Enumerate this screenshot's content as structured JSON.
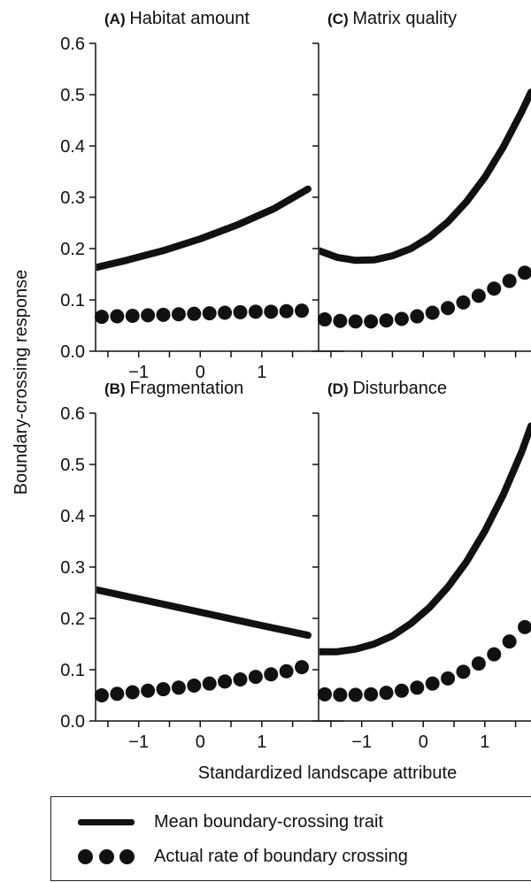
{
  "figure": {
    "ylabel": "Boundary-crossing response",
    "xlabel": "Standardized landscape attribute",
    "legend": {
      "line_label": "Mean boundary-crossing trait",
      "dots_label": "Actual rate of boundary crossing"
    },
    "colors": {
      "ink": "#111111",
      "background": "#ffffff"
    }
  },
  "chart_data": [
    {
      "type": "line",
      "panel_letter": "(A)",
      "title": "Habitat amount",
      "xlim": [
        -1.7,
        1.75
      ],
      "ylim": [
        0,
        0.6
      ],
      "yticks": [
        "0.0",
        "0.1",
        "0.2",
        "0.3",
        "0.4",
        "0.5",
        "0.6"
      ],
      "xticks": [
        "−1",
        "0",
        "1"
      ],
      "series": [
        {
          "name": "Mean boundary-crossing trait",
          "style": "line",
          "x": [
            -1.7,
            -1.2,
            -0.6,
            0,
            0.6,
            1.2,
            1.75
          ],
          "y": [
            0.163,
            0.177,
            0.196,
            0.219,
            0.246,
            0.278,
            0.316
          ]
        },
        {
          "name": "Actual rate of boundary crossing",
          "style": "dots",
          "x": [
            -1.6,
            -1.35,
            -1.1,
            -0.85,
            -0.6,
            -0.35,
            -0.1,
            0.15,
            0.4,
            0.65,
            0.9,
            1.15,
            1.4,
            1.65
          ],
          "y": [
            0.067,
            0.068,
            0.069,
            0.07,
            0.071,
            0.072,
            0.073,
            0.074,
            0.075,
            0.076,
            0.077,
            0.077,
            0.078,
            0.079
          ]
        }
      ]
    },
    {
      "type": "line",
      "panel_letter": "(C)",
      "title": "Matrix quality",
      "xlim": [
        -1.7,
        1.75
      ],
      "ylim": [
        0,
        0.6
      ],
      "yticks": [],
      "xticks": [],
      "series": [
        {
          "name": "Mean boundary-crossing trait",
          "style": "line",
          "x": [
            -1.7,
            -1.4,
            -1.1,
            -0.8,
            -0.5,
            -0.2,
            0.1,
            0.4,
            0.7,
            1.0,
            1.3,
            1.6,
            1.75
          ],
          "y": [
            0.196,
            0.183,
            0.177,
            0.178,
            0.186,
            0.2,
            0.222,
            0.252,
            0.291,
            0.339,
            0.398,
            0.467,
            0.505
          ]
        },
        {
          "name": "Actual rate of boundary crossing",
          "style": "dots",
          "x": [
            -1.6,
            -1.35,
            -1.1,
            -0.85,
            -0.6,
            -0.35,
            -0.1,
            0.15,
            0.4,
            0.65,
            0.9,
            1.15,
            1.4,
            1.65
          ],
          "y": [
            0.062,
            0.059,
            0.058,
            0.058,
            0.06,
            0.063,
            0.068,
            0.075,
            0.084,
            0.095,
            0.108,
            0.122,
            0.137,
            0.153
          ]
        }
      ]
    },
    {
      "type": "line",
      "panel_letter": "(B)",
      "title": "Fragmentation",
      "xlim": [
        -1.7,
        1.75
      ],
      "ylim": [
        0,
        0.6
      ],
      "yticks": [
        "0.0",
        "0.1",
        "0.2",
        "0.3",
        "0.4",
        "0.5",
        "0.6"
      ],
      "xticks": [
        "−1",
        "0",
        "1"
      ],
      "series": [
        {
          "name": "Mean boundary-crossing trait",
          "style": "line",
          "x": [
            -1.7,
            -1.0,
            0,
            1.0,
            1.75
          ],
          "y": [
            0.256,
            0.238,
            0.212,
            0.186,
            0.167
          ]
        },
        {
          "name": "Actual rate of boundary crossing",
          "style": "dots",
          "x": [
            -1.6,
            -1.35,
            -1.1,
            -0.85,
            -0.6,
            -0.35,
            -0.1,
            0.15,
            0.4,
            0.65,
            0.9,
            1.15,
            1.4,
            1.65
          ],
          "y": [
            0.05,
            0.053,
            0.056,
            0.059,
            0.062,
            0.065,
            0.069,
            0.073,
            0.077,
            0.081,
            0.086,
            0.091,
            0.097,
            0.105
          ]
        }
      ]
    },
    {
      "type": "line",
      "panel_letter": "(D)",
      "title": "Disturbance",
      "xlim": [
        -1.7,
        1.75
      ],
      "ylim": [
        0,
        0.6
      ],
      "yticks": [],
      "xticks": [
        "−1",
        "0",
        "1"
      ],
      "series": [
        {
          "name": "Mean boundary-crossing trait",
          "style": "line",
          "x": [
            -1.7,
            -1.4,
            -1.1,
            -0.8,
            -0.5,
            -0.2,
            0.1,
            0.4,
            0.7,
            1.0,
            1.3,
            1.6,
            1.75
          ],
          "y": [
            0.135,
            0.135,
            0.14,
            0.15,
            0.166,
            0.19,
            0.221,
            0.261,
            0.31,
            0.37,
            0.441,
            0.525,
            0.575
          ]
        },
        {
          "name": "Actual rate of boundary crossing",
          "style": "dots",
          "x": [
            -1.6,
            -1.35,
            -1.1,
            -0.85,
            -0.6,
            -0.35,
            -0.1,
            0.15,
            0.4,
            0.65,
            0.9,
            1.15,
            1.4,
            1.65
          ],
          "y": [
            0.052,
            0.051,
            0.051,
            0.052,
            0.055,
            0.059,
            0.065,
            0.073,
            0.083,
            0.096,
            0.112,
            0.13,
            0.155,
            0.183
          ]
        }
      ]
    }
  ]
}
